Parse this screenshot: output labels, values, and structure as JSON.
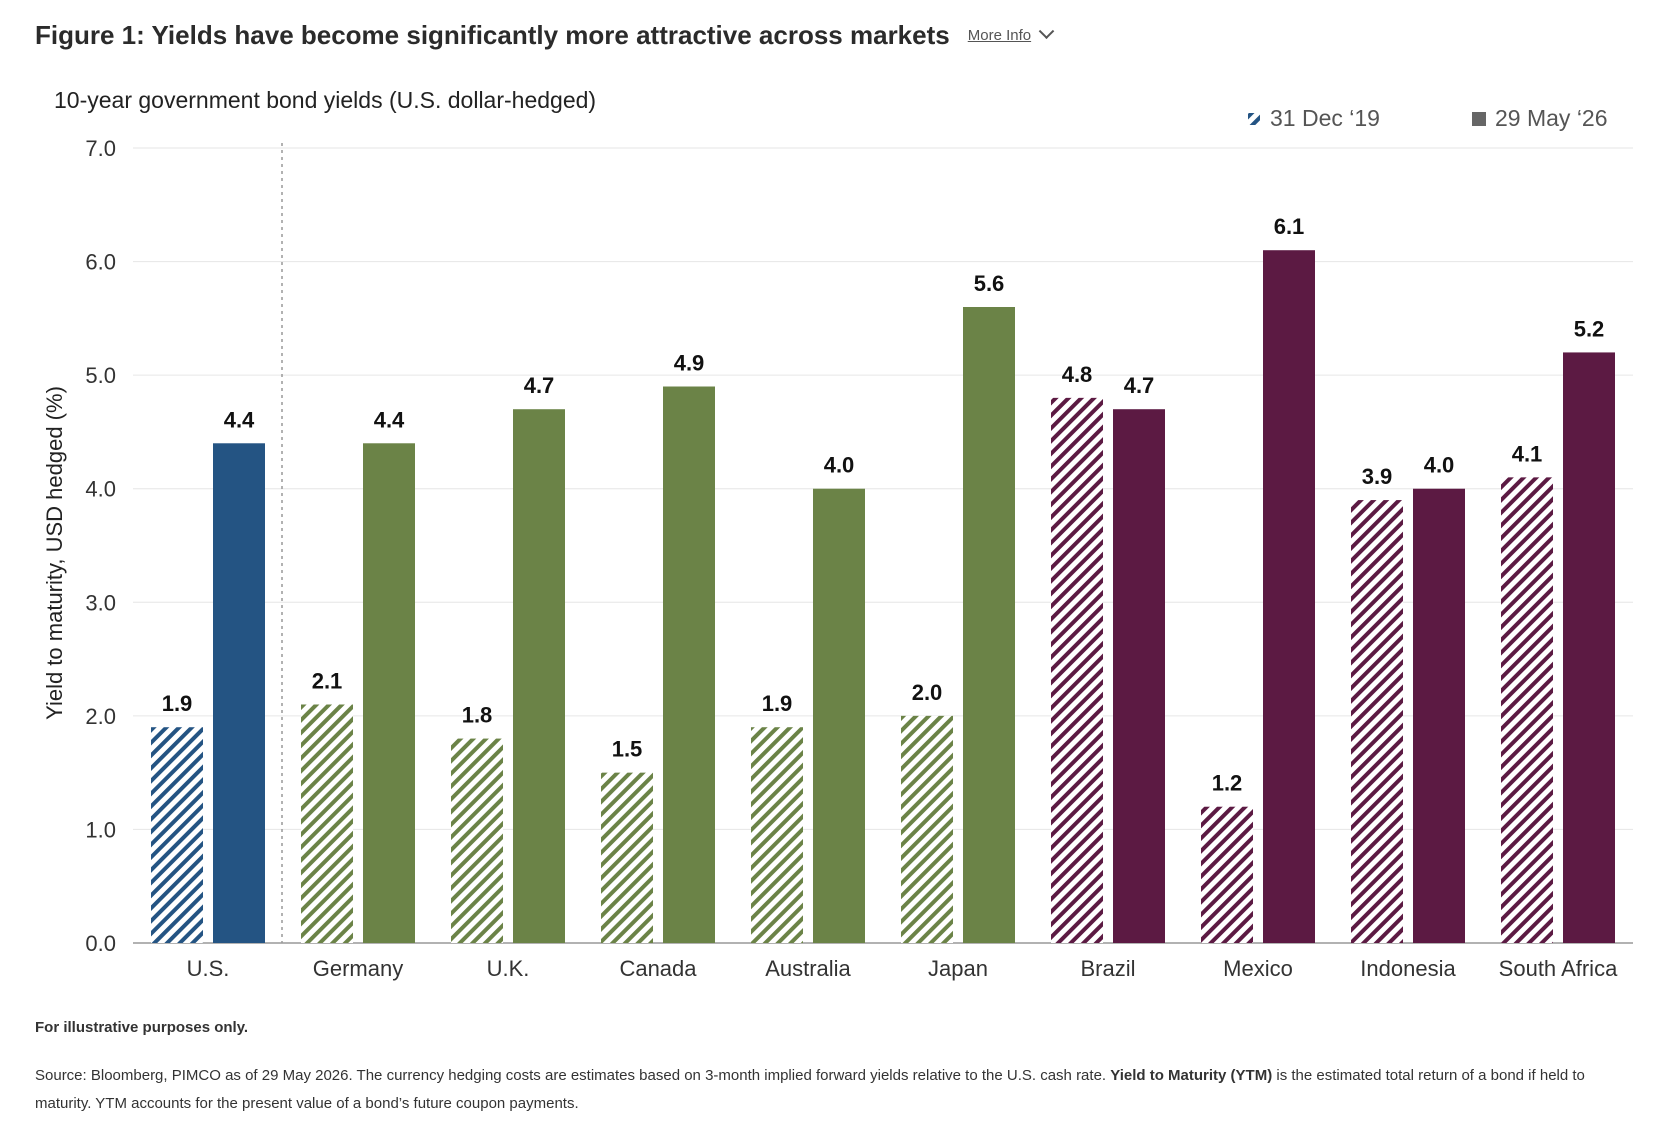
{
  "header": {
    "figure_title": "Figure 1: Yields have become significantly more attractive across markets",
    "more_info_label": "More Info"
  },
  "chart_data": {
    "type": "bar",
    "title": "10-year government bond yields (U.S. dollar-hedged)",
    "xlabel": "",
    "ylabel": "Yield to maturity, USD hedged (%)",
    "ylim": [
      0,
      7
    ],
    "yticks": [
      "0.0",
      "1.0",
      "2.0",
      "3.0",
      "4.0",
      "5.0",
      "6.0",
      "7.0"
    ],
    "grid": true,
    "legend_position": "top-right",
    "categories": [
      "U.S.",
      "Germany",
      "U.K.",
      "Canada",
      "Australia",
      "Japan",
      "Brazil",
      "Mexico",
      "Indonesia",
      "South Africa"
    ],
    "category_groups": [
      "us",
      "developed",
      "developed",
      "developed",
      "developed",
      "developed",
      "emerging",
      "emerging",
      "emerging",
      "emerging"
    ],
    "group_colors": {
      "us": "#245483",
      "developed": "#6b8347",
      "emerging": "#5c1a43"
    },
    "series": [
      {
        "name": "31 Dec '19",
        "style": "hatched",
        "values": [
          1.9,
          2.1,
          1.8,
          1.5,
          1.9,
          2.0,
          4.8,
          1.2,
          3.9,
          4.1
        ],
        "labels": [
          "1.9",
          "2.1",
          "1.8",
          "1.5",
          "1.9",
          "2.0",
          "4.8",
          "1.2",
          "3.9",
          "4.1"
        ]
      },
      {
        "name": "29 May '26",
        "style": "solid",
        "values": [
          4.4,
          4.4,
          4.7,
          4.9,
          4.0,
          5.6,
          4.7,
          6.1,
          4.0,
          5.2
        ],
        "labels": [
          "4.4",
          "4.4",
          "4.7",
          "4.9",
          "4.0",
          "5.6",
          "4.7",
          "6.1",
          "4.0",
          "5.2"
        ]
      }
    ],
    "legend": [
      "31 Dec ‘19",
      "29 May ‘26"
    ],
    "separator_after_category": "U.S."
  },
  "footer": {
    "note": "For illustrative purposes only.",
    "source_prefix": "Source: Bloomberg, PIMCO as of 29 May 2026. The currency hedging costs are estimates based on 3-month implied forward yields relative to the U.S. cash rate. ",
    "source_bold": "Yield to Maturity (YTM)",
    "source_suffix": " is the estimated total return of a bond if held to maturity. YTM accounts for the present value of a bond’s future coupon payments."
  }
}
